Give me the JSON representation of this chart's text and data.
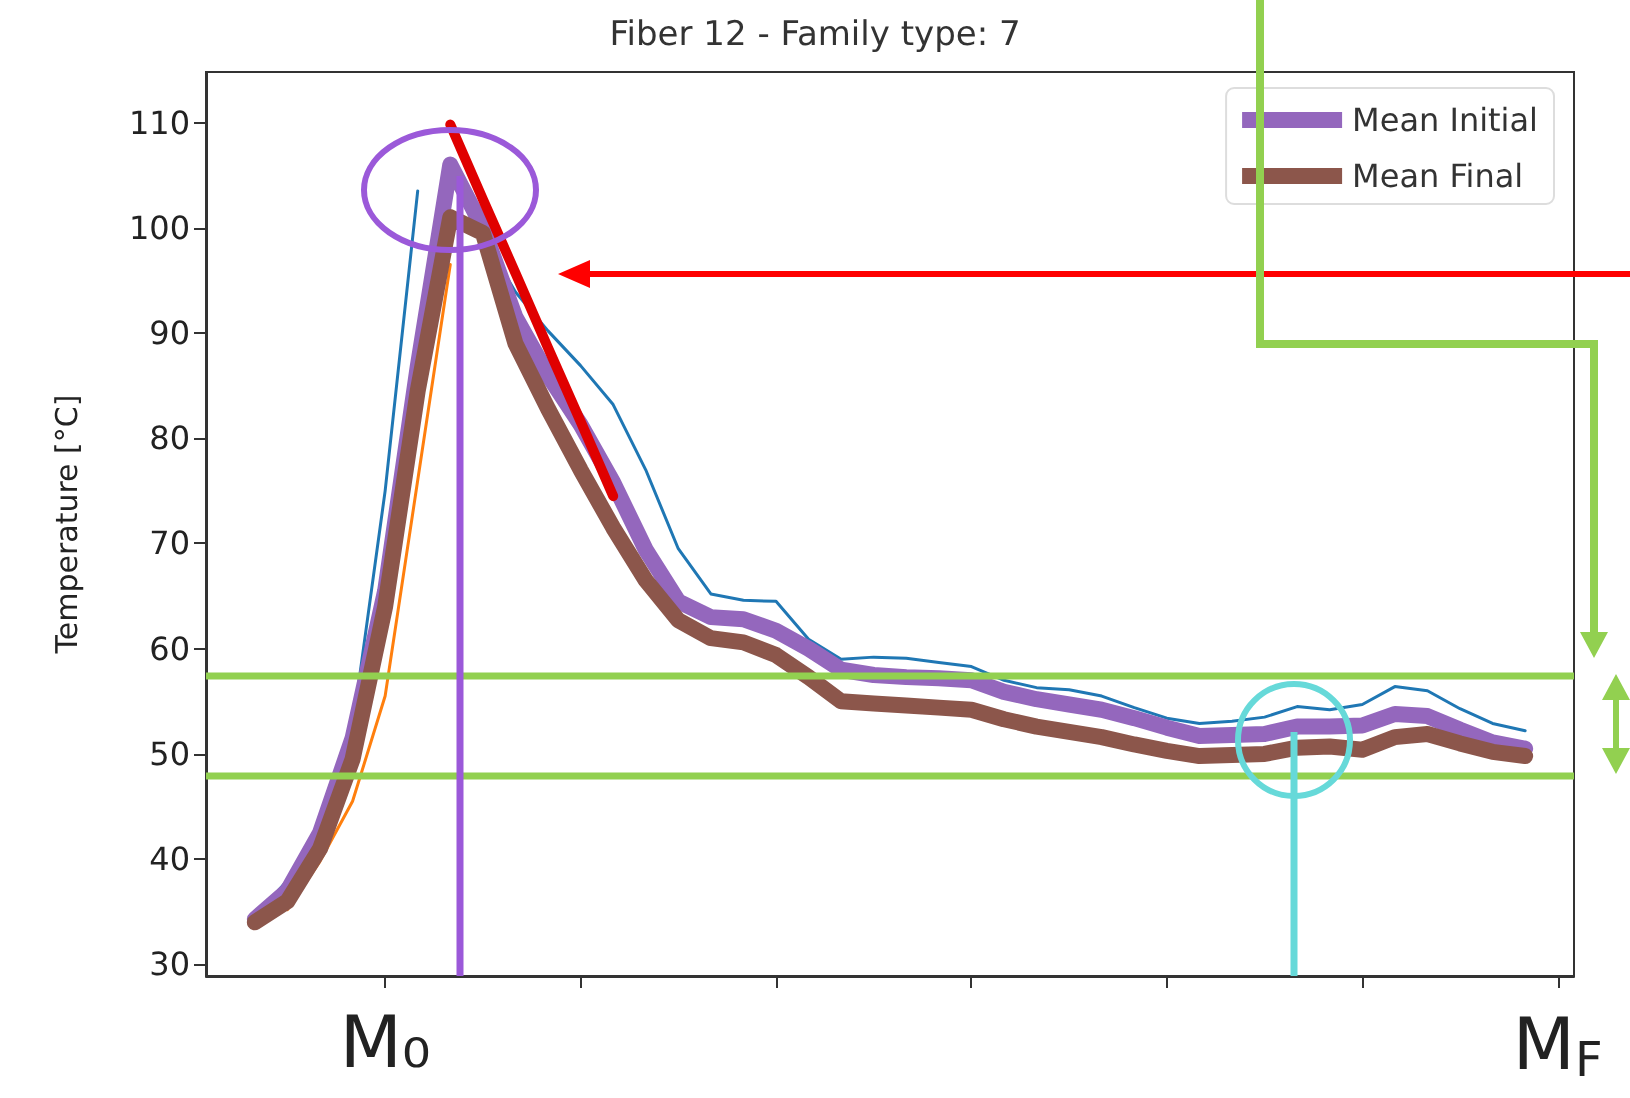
{
  "chart_data": {
    "type": "line",
    "title": "Fiber 12 - Family type: 7",
    "ylabel": "Temperature [°C]",
    "categories": [
      null,
      null,
      null,
      null,
      null,
      "M₀",
      null,
      null,
      null,
      null,
      null,
      null,
      null,
      null,
      null,
      null,
      null,
      null,
      null,
      null,
      null,
      null,
      null,
      null,
      null,
      null,
      null,
      null,
      null,
      null,
      null,
      null,
      null,
      null,
      null,
      null,
      null,
      null,
      null,
      null,
      null,
      "M$_{F}$"
    ],
    "ylim": [
      28.9,
      114.8
    ],
    "yticks": [
      30,
      40,
      50,
      60,
      70,
      80,
      90,
      100,
      110
    ],
    "grid": false,
    "legend": "top right",
    "marker": "none",
    "series": [
      {
        "color": "#1f77b4",
        "values": [
          null,
          34.5,
          38,
          43.5,
          52.5,
          75,
          103.5,
          null,
          99.2,
          93.9,
          90.2,
          86.9,
          83.2,
          77,
          69.5,
          65.2,
          64.6,
          64.5,
          60.9,
          59,
          59.2,
          59.1,
          58.7,
          58.3,
          57,
          56.3,
          56.1,
          55.5,
          54.4,
          53.4,
          52.9,
          53.1,
          53.5,
          54.5,
          54.2,
          54.7,
          56.4,
          56,
          54.3,
          52.9,
          52.2,
          null
        ]
      },
      {
        "color": "#ff7f0e",
        "values": [
          null,
          null,
          35.2,
          39.8,
          45.5,
          55.5,
          76,
          96.5,
          null,
          null,
          null,
          null,
          null,
          null,
          null,
          null,
          null,
          null,
          null,
          null,
          null,
          null,
          null,
          null,
          null,
          null,
          null,
          null,
          null,
          null,
          null,
          null,
          null,
          null,
          null,
          null,
          null,
          null,
          null,
          null,
          null,
          null
        ]
      },
      {
        "name": "Mean Initial",
        "color": "#9467bd",
        "values": [
          null,
          34.3,
          37,
          42.5,
          51.5,
          65.5,
          86.8,
          106,
          100,
          91.5,
          86,
          81.3,
          75.8,
          69.4,
          64.5,
          63,
          62.8,
          61.7,
          60,
          58,
          57.5,
          57.3,
          57.2,
          57,
          55.9,
          55.2,
          54.7,
          54.2,
          53.4,
          52.5,
          51.7,
          51.8,
          51.9,
          52.6,
          52.6,
          52.7,
          53.8,
          53.6,
          52.3,
          51.1,
          50.5,
          null
        ]
      },
      {
        "name": "Mean Final",
        "color": "#8c564b",
        "values": [
          null,
          34,
          36,
          41,
          49.5,
          64,
          84.5,
          101,
          99.5,
          89,
          82.8,
          77,
          71.5,
          66.5,
          62.7,
          61,
          60.6,
          59.4,
          57.3,
          55,
          54.8,
          54.6,
          54.4,
          54.2,
          53.3,
          52.6,
          52.1,
          51.6,
          50.9,
          50.3,
          49.8,
          49.9,
          50,
          50.6,
          50.7,
          50.4,
          51.6,
          51.9,
          51,
          50.2,
          49.8,
          null
        ]
      },
      {
        "type": "line",
        "color": "#e00000",
        "values": [
          null,
          null,
          null,
          null,
          null,
          null,
          null,
          109.8,
          102.7,
          95.7,
          88.6,
          81.6,
          74.5,
          null,
          null,
          null,
          null,
          null,
          null,
          null,
          null,
          null,
          null,
          null,
          null,
          null,
          null,
          null,
          null,
          null,
          null,
          null,
          null,
          null,
          null,
          null,
          null,
          null,
          null,
          null,
          null,
          null
        ]
      }
    ],
    "ref_lines": [
      {
        "axis": "y",
        "value": 57.5,
        "color": "#92d050"
      },
      {
        "axis": "y",
        "value": 48,
        "color": "#92d050"
      }
    ]
  }
}
